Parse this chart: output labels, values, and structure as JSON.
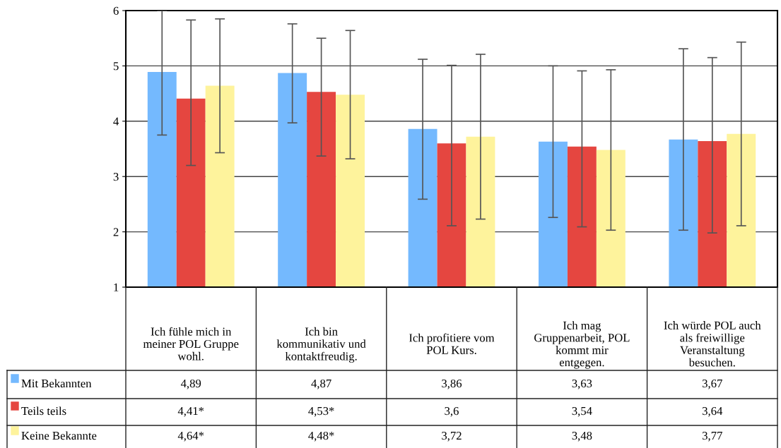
{
  "chart_data": {
    "type": "bar",
    "categories": [
      "Ich fühle mich in\nmeiner POL Gruppe\nwohl.",
      "Ich bin\nkommunikativ und\nkontaktfreudig.",
      "Ich profitiere vom\nPOL Kurs.",
      "Ich mag\nGruppenarbeit, POL\nkommt mir\nentgegen.",
      "Ich würde POL auch\nals freiwillige\nVeranstaltung\nbesuchen."
    ],
    "series": [
      {
        "name": "Mit Bekannten",
        "color": "#74b9fe",
        "values": [
          4.89,
          4.87,
          3.86,
          3.63,
          3.67
        ],
        "value_labels": [
          "4,89",
          "4,87",
          "3,86",
          "3,63",
          "3,67"
        ],
        "errors": [
          [
            3.75,
            6.0
          ],
          [
            3.97,
            5.76
          ],
          [
            2.59,
            5.12
          ],
          [
            2.26,
            5.0
          ],
          [
            2.03,
            5.31
          ]
        ]
      },
      {
        "name": "Teils teils",
        "color": "#e54640",
        "values": [
          4.41,
          4.53,
          3.6,
          3.54,
          3.64
        ],
        "value_labels": [
          "4,41*",
          "4,53*",
          "3,6",
          "3,54",
          "3,64"
        ],
        "errors": [
          [
            3.2,
            5.83
          ],
          [
            3.37,
            5.5
          ],
          [
            2.11,
            5.01
          ],
          [
            2.09,
            4.91
          ],
          [
            1.98,
            5.15
          ]
        ]
      },
      {
        "name": "Keine Bekannte",
        "color": "#fef39c",
        "values": [
          4.64,
          4.48,
          3.72,
          3.48,
          3.77
        ],
        "value_labels": [
          "4,64*",
          "4,48*",
          "3,72",
          "3,48",
          "3,77"
        ],
        "errors": [
          [
            3.43,
            5.85
          ],
          [
            3.32,
            5.64
          ],
          [
            2.23,
            5.21
          ],
          [
            2.03,
            4.93
          ],
          [
            2.11,
            5.43
          ]
        ]
      }
    ],
    "ylim": [
      1,
      6
    ],
    "yticks": [
      1,
      2,
      3,
      4,
      5,
      6
    ],
    "grid": "y",
    "legend": "bottom left"
  }
}
